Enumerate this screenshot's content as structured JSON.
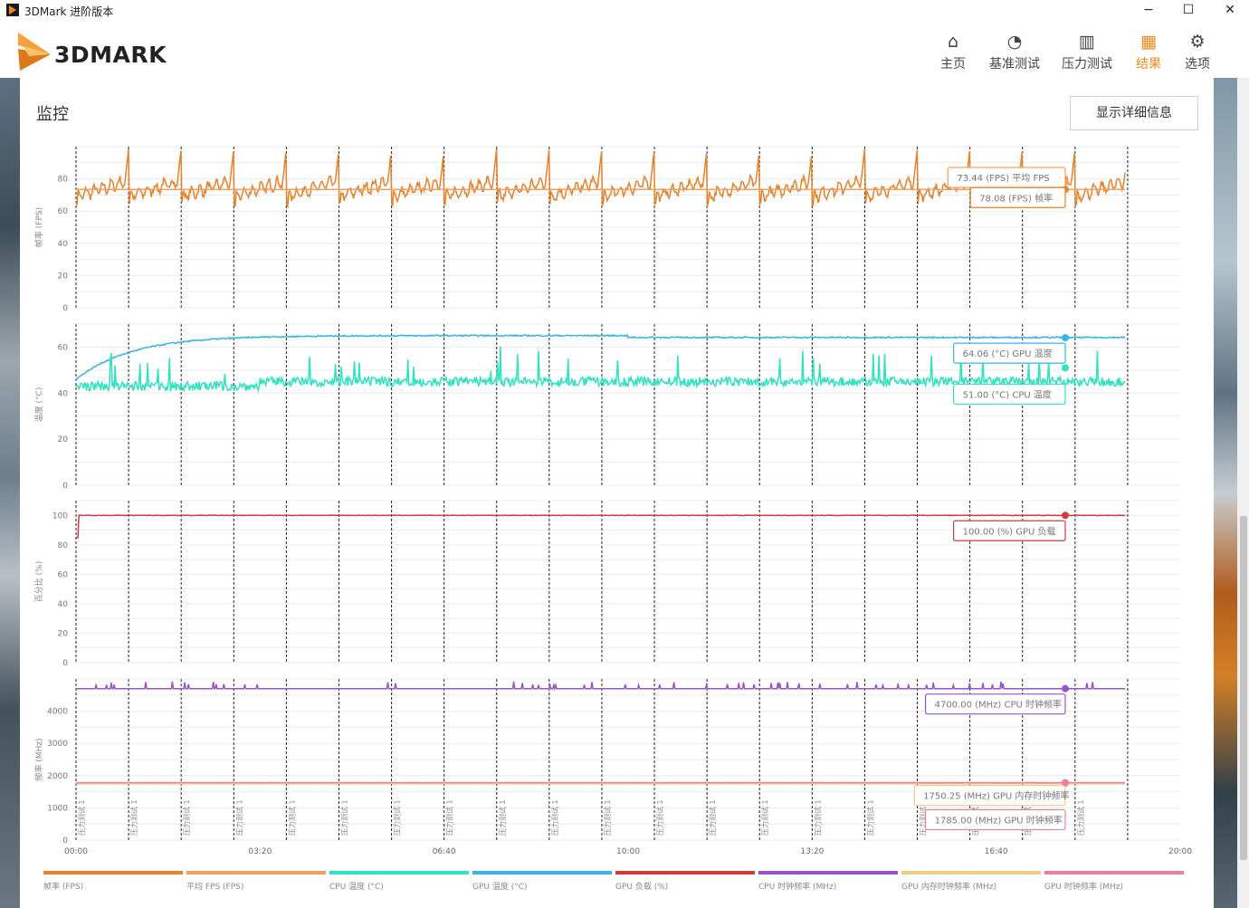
{
  "window": {
    "title": "3DMark 进阶版本",
    "minimize_glyph": "−",
    "maximize_glyph": "☐",
    "close_glyph": "✕"
  },
  "app": {
    "logo_text": "3DMARK"
  },
  "nav": [
    {
      "label": "主页",
      "icon": "home-icon",
      "glyph": "⌂",
      "active": false
    },
    {
      "label": "基准测试",
      "icon": "speedometer-icon",
      "glyph": "◔",
      "active": false
    },
    {
      "label": "压力测试",
      "icon": "bar-chart-icon",
      "glyph": "▥",
      "active": false
    },
    {
      "label": "结果",
      "icon": "results-chart-icon",
      "glyph": "▦",
      "active": true
    },
    {
      "label": "选项",
      "icon": "gear-icon",
      "glyph": "⚙",
      "active": false
    }
  ],
  "section": {
    "title": "监控",
    "details_button": "显示详细信息"
  },
  "colors": {
    "fps": "#e8822a",
    "avg_fps": "#f0a064",
    "cpu_temp": "#2ee3bf",
    "gpu_temp": "#3ab3e6",
    "gpu_load": "#d13b3b",
    "cpu_clock": "#9b53c9",
    "gpu_mem_clock": "#f2c987",
    "gpu_clock": "#eb7fa3",
    "accent": "#f08a1c"
  },
  "chart_data": [
    {
      "type": "line",
      "ylabel": "帧率 (FPS)",
      "ylim": [
        0,
        100
      ],
      "yticks": [
        0,
        20,
        40,
        60,
        80
      ],
      "series": [
        {
          "name": "帧率",
          "unit": "FPS",
          "pattern": "periodic",
          "base": 69,
          "spike": 97,
          "current": 78.08
        },
        {
          "name": "平均 FPS",
          "unit": "FPS",
          "pattern": "flat",
          "value": 73.44
        }
      ],
      "tooltips": [
        {
          "text": "73.44 (FPS) 平均 FPS",
          "color_key": "avg_fps"
        },
        {
          "text": "78.08 (FPS) 帧率",
          "color_key": "fps"
        }
      ]
    },
    {
      "type": "line",
      "ylabel": "温度 (°C)",
      "ylim": [
        0,
        70
      ],
      "yticks": [
        0,
        20,
        40,
        60
      ],
      "series": [
        {
          "name": "GPU 温度",
          "unit": "°C",
          "pattern": "rise",
          "start": 46,
          "plateau": 65,
          "current": 64.06
        },
        {
          "name": "CPU 温度",
          "unit": "°C",
          "pattern": "noisy",
          "base": 43,
          "current": 51.0
        }
      ],
      "tooltips": [
        {
          "text": "64.06 (°C) GPU 温度",
          "color_key": "gpu_temp"
        },
        {
          "text": "51.00 (°C) CPU 温度",
          "color_key": "cpu_temp"
        }
      ]
    },
    {
      "type": "line",
      "ylabel": "百分比 (%)",
      "ylim": [
        0,
        110
      ],
      "yticks": [
        0,
        20,
        40,
        60,
        80,
        100
      ],
      "series": [
        {
          "name": "GPU 负载",
          "unit": "%",
          "pattern": "flat",
          "value": 100.0
        }
      ],
      "tooltips": [
        {
          "text": "100.00 (%) GPU 负载",
          "color_key": "gpu_load"
        }
      ]
    },
    {
      "type": "line",
      "ylabel": "频率 (MHz)",
      "ylim": [
        0,
        5000
      ],
      "yticks": [
        0,
        1000,
        2000,
        3000,
        4000
      ],
      "series": [
        {
          "name": "CPU 时钟频率",
          "unit": "MHz",
          "pattern": "flat-spiky",
          "value": 4700.0
        },
        {
          "name": "GPU 内存时钟频率",
          "unit": "MHz",
          "pattern": "flat",
          "value": 1750.25
        },
        {
          "name": "GPU 时钟频率",
          "unit": "MHz",
          "pattern": "flat",
          "value": 1785.0
        }
      ],
      "tooltips": [
        {
          "text": "4700.00 (MHz) CPU 时钟频率",
          "color_key": "cpu_clock"
        },
        {
          "text": "1750.25 (MHz) GPU 内存时钟频率",
          "color_key": "gpu_mem_clock"
        },
        {
          "text": "1785.00 (MHz) GPU 时钟频率",
          "color_key": "gpu_clock"
        }
      ],
      "marker_label": "压力测试 1"
    }
  ],
  "x_axis": {
    "range_seconds": [
      0,
      1200
    ],
    "ticks": [
      "00:00",
      "03:20",
      "06:40",
      "10:00",
      "13:20",
      "16:40",
      "20:00"
    ],
    "loop_count": 20,
    "end_seconds": 1140
  },
  "legend": [
    {
      "label": "帧率 (FPS)",
      "color_key": "fps"
    },
    {
      "label": "平均 FPS (FPS)",
      "color_key": "avg_fps"
    },
    {
      "label": "CPU 温度 (°C)",
      "color_key": "cpu_temp"
    },
    {
      "label": "GPU 温度 (°C)",
      "color_key": "gpu_temp"
    },
    {
      "label": "GPU 负载 (%)",
      "color_key": "gpu_load"
    },
    {
      "label": "CPU 时钟频率 (MHz)",
      "color_key": "cpu_clock"
    },
    {
      "label": "GPU 内存时钟频率 (MHz)",
      "color_key": "gpu_mem_clock"
    },
    {
      "label": "GPU 时钟频率 (MHz)",
      "color_key": "gpu_clock"
    }
  ]
}
